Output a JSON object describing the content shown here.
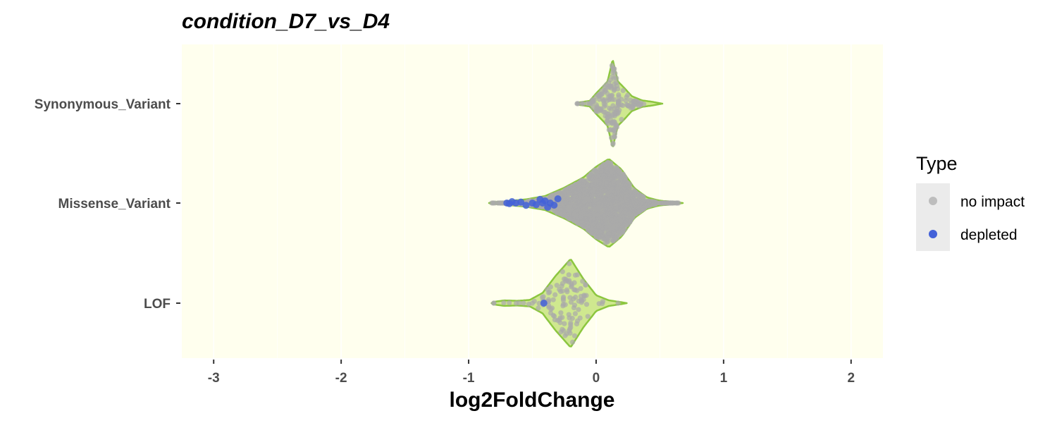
{
  "chart_data": {
    "type": "violin",
    "title": "condition_D7_vs_D4",
    "xlabel": "log2FoldChange",
    "ylabel": "",
    "xlim": [
      -3.25,
      2.25
    ],
    "x_ticks": [
      -3,
      -2,
      -1,
      0,
      1,
      2
    ],
    "x_tick_labels": [
      "-3",
      "-2",
      "-1",
      "0",
      "1",
      "2"
    ],
    "categories": [
      "Synonymous_Variant",
      "Missense_Variant",
      "LOF"
    ],
    "background_color": "#ffffee",
    "violin_fill": "#cfe88f",
    "violin_stroke": "#8cc63f",
    "legend": {
      "title": "Type",
      "position": "right",
      "entries": [
        {
          "label": "no impact",
          "color": "#a9a9a9"
        },
        {
          "label": "depleted",
          "color": "#4361d8"
        }
      ]
    },
    "series": [
      {
        "name": "Synonymous_Variant",
        "range": [
          -0.15,
          0.52
        ],
        "density": [
          [
            -0.15,
            0.02
          ],
          [
            -0.05,
            0.06
          ],
          [
            0.0,
            0.22
          ],
          [
            0.05,
            0.36
          ],
          [
            0.09,
            0.48
          ],
          [
            0.13,
            0.95
          ],
          [
            0.17,
            0.48
          ],
          [
            0.22,
            0.34
          ],
          [
            0.28,
            0.16
          ],
          [
            0.36,
            0.07
          ],
          [
            0.44,
            0.04
          ],
          [
            0.52,
            0.0
          ]
        ],
        "no_impact_count": 180,
        "depleted_points": []
      },
      {
        "name": "Missense_Variant",
        "range": [
          -0.84,
          0.68
        ],
        "density": [
          [
            -0.84,
            0.01
          ],
          [
            -0.7,
            0.04
          ],
          [
            -0.55,
            0.08
          ],
          [
            -0.4,
            0.15
          ],
          [
            -0.25,
            0.33
          ],
          [
            -0.1,
            0.55
          ],
          [
            0.0,
            0.78
          ],
          [
            0.1,
            0.95
          ],
          [
            0.2,
            0.72
          ],
          [
            0.3,
            0.32
          ],
          [
            0.4,
            0.12
          ],
          [
            0.5,
            0.05
          ],
          [
            0.6,
            0.03
          ],
          [
            0.68,
            0.0
          ]
        ],
        "no_impact_count": 2000,
        "depleted_points": [
          -0.7,
          -0.68,
          -0.66,
          -0.63,
          -0.59,
          -0.55,
          -0.5,
          -0.47,
          -0.44,
          -0.42,
          -0.4,
          -0.38,
          -0.36,
          -0.33,
          -0.3
        ]
      },
      {
        "name": "LOF",
        "range": [
          -0.82,
          0.24
        ],
        "density": [
          [
            -0.82,
            0.02
          ],
          [
            -0.72,
            0.06
          ],
          [
            -0.62,
            0.05
          ],
          [
            -0.52,
            0.07
          ],
          [
            -0.42,
            0.22
          ],
          [
            -0.32,
            0.58
          ],
          [
            -0.2,
            0.95
          ],
          [
            -0.1,
            0.52
          ],
          [
            0.0,
            0.17
          ],
          [
            0.1,
            0.06
          ],
          [
            0.2,
            0.02
          ],
          [
            0.24,
            0.0
          ]
        ],
        "no_impact_count": 120,
        "depleted_points": [
          -0.41
        ]
      }
    ]
  }
}
